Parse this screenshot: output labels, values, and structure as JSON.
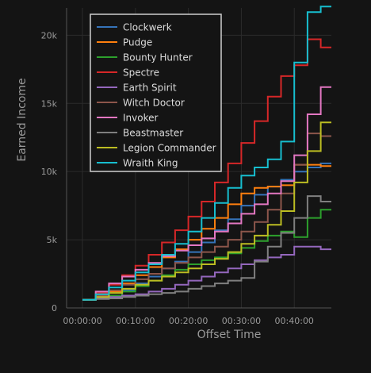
{
  "chart_data": {
    "type": "line",
    "title": "",
    "xlabel": "Offset Time",
    "ylabel": "Earned Income",
    "xlim": [
      -180,
      2820
    ],
    "ylim": [
      0,
      22000
    ],
    "x_ticks": [
      {
        "value": 0,
        "label": "00:00:00"
      },
      {
        "value": 600,
        "label": "00:10:00"
      },
      {
        "value": 1200,
        "label": "00:20:00"
      },
      {
        "value": 1800,
        "label": "00:30:00"
      },
      {
        "value": 2400,
        "label": "00:40:00"
      }
    ],
    "y_ticks": [
      {
        "value": 0,
        "label": "0"
      },
      {
        "value": 5000,
        "label": "5k"
      },
      {
        "value": 10000,
        "label": "10k"
      },
      {
        "value": 15000,
        "label": "15k"
      },
      {
        "value": 20000,
        "label": "20k"
      }
    ],
    "grid": true,
    "legend_position": "top-left",
    "x_unit": "seconds",
    "series": [
      {
        "name": "Clockwerk",
        "color": "#3573b9",
        "x": [
          0,
          150,
          300,
          450,
          600,
          750,
          900,
          1050,
          1200,
          1350,
          1500,
          1650,
          1800,
          1950,
          2100,
          2250,
          2400,
          2550,
          2700,
          2820
        ],
        "y": [
          600,
          700,
          900,
          1300,
          1800,
          2300,
          2900,
          3400,
          4100,
          4800,
          5700,
          6500,
          7500,
          8300,
          8900,
          9400,
          10000,
          10300,
          10600,
          10600
        ]
      },
      {
        "name": "Pudge",
        "color": "#ff7f0e",
        "x": [
          0,
          150,
          300,
          450,
          600,
          750,
          900,
          1050,
          1200,
          1350,
          1500,
          1650,
          1800,
          1950,
          2100,
          2250,
          2400,
          2550,
          2700,
          2820
        ],
        "y": [
          600,
          800,
          1200,
          1800,
          2400,
          3000,
          3700,
          4300,
          5000,
          5800,
          6600,
          7600,
          8400,
          8800,
          8900,
          9000,
          10500,
          10500,
          10400,
          10400
        ]
      },
      {
        "name": "Bounty Hunter",
        "color": "#2ca02c",
        "x": [
          0,
          150,
          300,
          450,
          600,
          750,
          900,
          1050,
          1200,
          1350,
          1500,
          1650,
          1800,
          1950,
          2100,
          2250,
          2400,
          2550,
          2700,
          2820
        ],
        "y": [
          600,
          700,
          900,
          1200,
          1600,
          2000,
          2400,
          2800,
          3200,
          3500,
          3700,
          4000,
          4400,
          4900,
          5300,
          5600,
          5200,
          6600,
          7200,
          7200
        ]
      },
      {
        "name": "Spectre",
        "color": "#d62728",
        "x": [
          0,
          150,
          300,
          450,
          600,
          750,
          900,
          1050,
          1200,
          1350,
          1500,
          1650,
          1800,
          1950,
          2100,
          2250,
          2400,
          2550,
          2700,
          2820
        ],
        "y": [
          600,
          1100,
          1700,
          2400,
          3100,
          3900,
          4800,
          5700,
          6700,
          7800,
          9200,
          10600,
          12100,
          13700,
          15500,
          17000,
          17800,
          19700,
          19100,
          19100
        ]
      },
      {
        "name": "Earth Spirit",
        "color": "#9467bd",
        "x": [
          0,
          150,
          300,
          450,
          600,
          750,
          900,
          1050,
          1200,
          1350,
          1500,
          1650,
          1800,
          1950,
          2100,
          2250,
          2400,
          2550,
          2700,
          2820
        ],
        "y": [
          600,
          700,
          800,
          900,
          1000,
          1200,
          1400,
          1700,
          2000,
          2300,
          2600,
          2900,
          3200,
          3500,
          3700,
          3900,
          4500,
          4500,
          4300,
          4300
        ]
      },
      {
        "name": "Witch Doctor",
        "color": "#8c564b",
        "x": [
          0,
          150,
          300,
          450,
          600,
          750,
          900,
          1050,
          1200,
          1350,
          1500,
          1650,
          1800,
          1950,
          2100,
          2250,
          2400,
          2550,
          2700,
          2820
        ],
        "y": [
          600,
          900,
          1300,
          1700,
          2100,
          2500,
          2900,
          3300,
          3700,
          4100,
          4500,
          5000,
          5600,
          6300,
          7200,
          8400,
          10500,
          12800,
          12600,
          12600
        ]
      },
      {
        "name": "Invoker",
        "color": "#e377c2",
        "x": [
          0,
          150,
          300,
          450,
          600,
          750,
          900,
          1050,
          1200,
          1350,
          1500,
          1650,
          1800,
          1950,
          2100,
          2250,
          2400,
          2550,
          2700,
          2820
        ],
        "y": [
          600,
          1200,
          1800,
          2300,
          2800,
          3300,
          3800,
          4200,
          4600,
          5100,
          5600,
          6200,
          6900,
          7600,
          8400,
          9300,
          11200,
          14200,
          16200,
          16200
        ]
      },
      {
        "name": "Beastmaster",
        "color": "#7f7f7f",
        "x": [
          0,
          150,
          300,
          450,
          600,
          750,
          900,
          1050,
          1200,
          1350,
          1500,
          1650,
          1800,
          1950,
          2100,
          2250,
          2400,
          2550,
          2700,
          2820
        ],
        "y": [
          600,
          650,
          700,
          800,
          900,
          1000,
          1100,
          1200,
          1400,
          1600,
          1800,
          2000,
          2200,
          3400,
          4500,
          5500,
          6600,
          8200,
          7800,
          7800
        ]
      },
      {
        "name": "Legion Commander",
        "color": "#bcbd22",
        "x": [
          0,
          150,
          300,
          450,
          600,
          750,
          900,
          1050,
          1200,
          1350,
          1500,
          1650,
          1800,
          1950,
          2100,
          2250,
          2400,
          2550,
          2700,
          2820
        ],
        "y": [
          600,
          800,
          1100,
          1400,
          1700,
          2000,
          2300,
          2600,
          2900,
          3200,
          3600,
          4100,
          4700,
          5300,
          6100,
          7100,
          9200,
          11500,
          13600,
          13600
        ]
      },
      {
        "name": "Wraith King",
        "color": "#17becf",
        "x": [
          0,
          150,
          300,
          450,
          600,
          750,
          900,
          1050,
          1200,
          1350,
          1500,
          1650,
          1800,
          1950,
          2100,
          2250,
          2400,
          2550,
          2700,
          2820
        ],
        "y": [
          600,
          1000,
          1500,
          2000,
          2600,
          3200,
          3900,
          4700,
          5600,
          6600,
          7700,
          8800,
          9700,
          10300,
          10900,
          12200,
          18000,
          21700,
          22100,
          22100
        ]
      }
    ]
  }
}
